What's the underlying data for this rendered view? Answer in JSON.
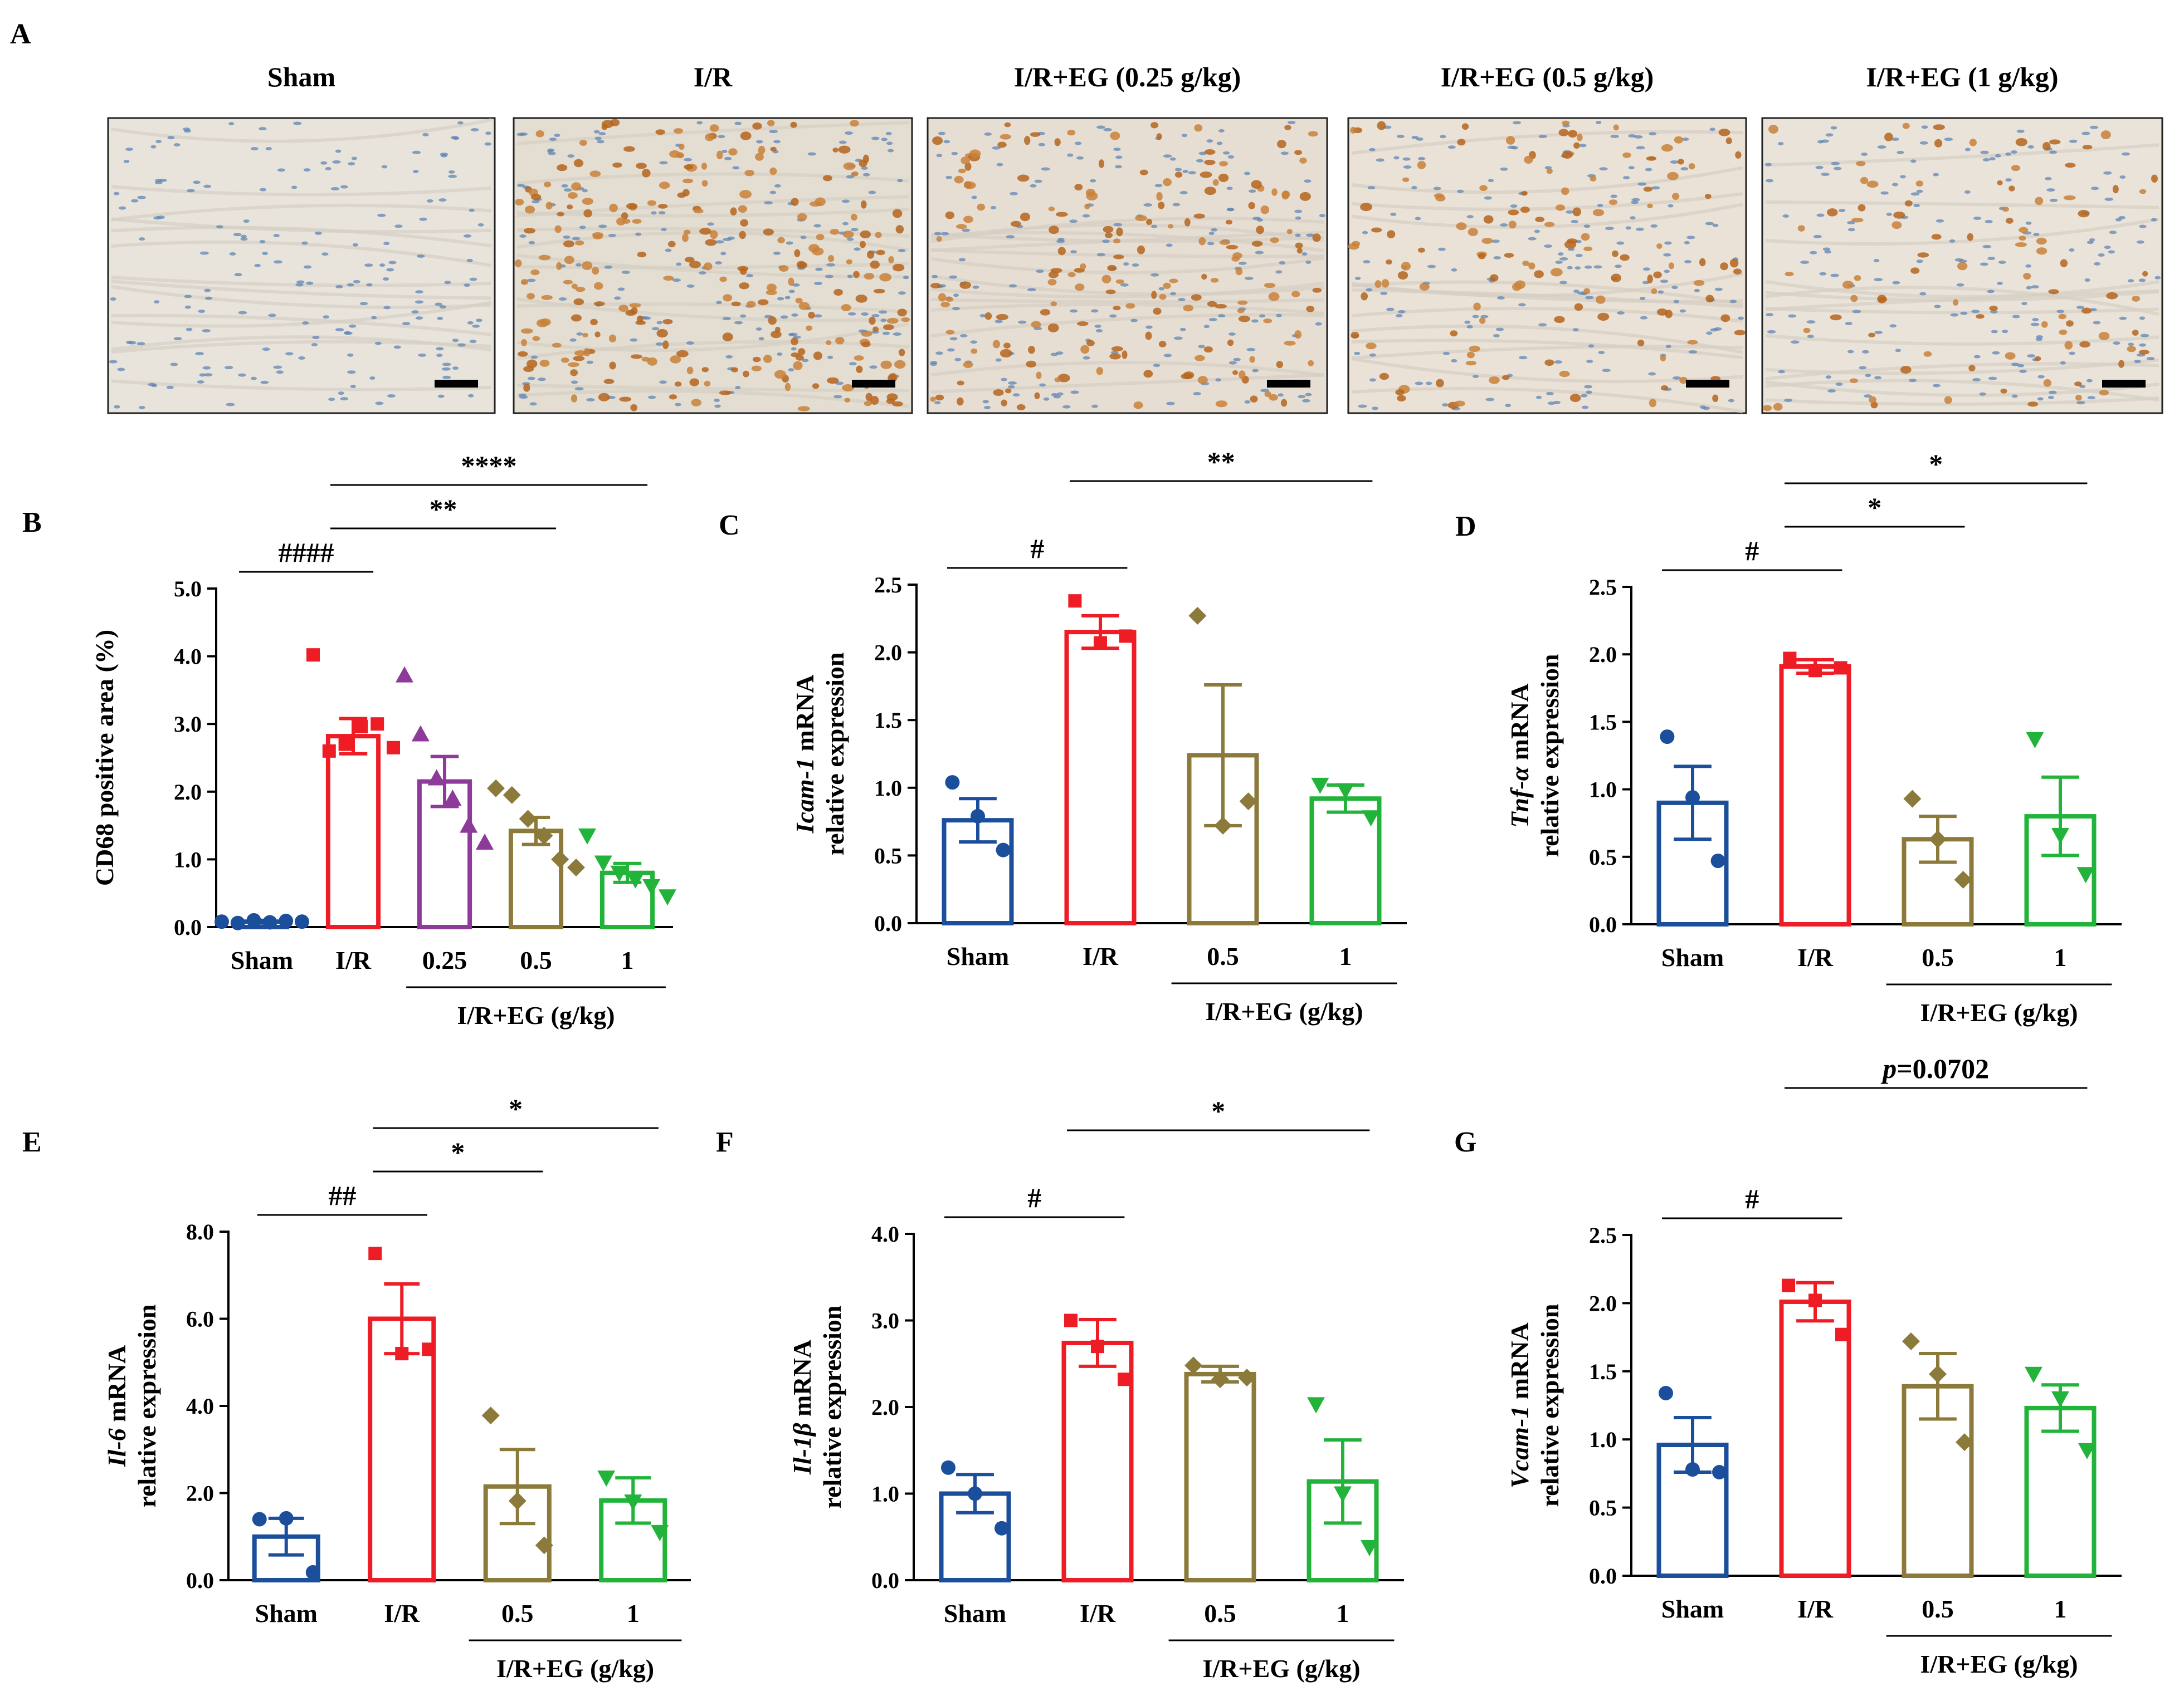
{
  "panel_a": {
    "letter": "A",
    "images": [
      {
        "label": "Sham",
        "tone": "#e8e4dc",
        "stain": "blue",
        "density": 0.0
      },
      {
        "label": "I/R",
        "tone": "#e4ddd2",
        "stain": "brown",
        "density": 1.0
      },
      {
        "label": "I/R+EG (0.25 g/kg)",
        "tone": "#e6ded2",
        "stain": "brown",
        "density": 0.7
      },
      {
        "label": "I/R+EG (0.5 g/kg)",
        "tone": "#eae2d6",
        "stain": "brown",
        "density": 0.5
      },
      {
        "label": "I/R+EG (1 g/kg)",
        "tone": "#e9e3da",
        "stain": "brown",
        "density": 0.35
      }
    ]
  },
  "colors": {
    "Sham": "#1b4f9c",
    "I/R": "#ee1c25",
    "0.25": "#8e3a9a",
    "0.5": "#8b7a3a",
    "1": "#22b33a"
  },
  "group_label": "I/R+EG (g/kg)",
  "chart_data": [
    {
      "id": "B",
      "letter": "B",
      "type": "bar",
      "ylabel_parts": [
        {
          "text": "CD68 positive area (%)",
          "italic": false
        }
      ],
      "ylabel2": "",
      "ylim": [
        0,
        5
      ],
      "yticks": [
        "0.0",
        "1.0",
        "2.0",
        "3.0",
        "4.0",
        "5.0"
      ],
      "categories": [
        "Sham",
        "I/R",
        "0.25",
        "0.5",
        "1"
      ],
      "values": [
        0.08,
        2.82,
        2.15,
        1.42,
        0.8
      ],
      "sem": [
        0.02,
        0.26,
        0.37,
        0.2,
        0.14
      ],
      "points": [
        [
          0.08,
          0.06,
          0.1,
          0.07,
          0.09,
          0.08
        ],
        [
          4.02,
          2.6,
          2.7,
          2.96,
          3.0,
          2.65
        ],
        [
          3.72,
          2.85,
          2.2,
          1.9,
          1.5,
          1.25
        ],
        [
          2.05,
          1.95,
          1.6,
          1.35,
          1.0,
          0.88
        ],
        [
          1.35,
          0.95,
          0.8,
          0.7,
          0.6,
          0.45
        ]
      ],
      "group_cats": [
        2,
        4
      ],
      "comparisons": [
        {
          "from": 0,
          "to": 1,
          "label": "####",
          "level": 0
        },
        {
          "from": 1,
          "to": 3,
          "label": "**",
          "level": 1
        },
        {
          "from": 1,
          "to": 4,
          "label": "****",
          "level": 2
        }
      ]
    },
    {
      "id": "C",
      "letter": "C",
      "type": "bar",
      "ylabel_parts": [
        {
          "text": "Icam-1",
          "italic": true
        },
        {
          "text": " mRNA",
          "italic": false
        }
      ],
      "ylabel2": "relative expression",
      "ylim": [
        0,
        2.5
      ],
      "yticks": [
        "0.0",
        "0.5",
        "1.0",
        "1.5",
        "2.0",
        "2.5"
      ],
      "categories": [
        "Sham",
        "I/R",
        "0.5",
        "1"
      ],
      "values": [
        0.76,
        2.15,
        1.24,
        0.92
      ],
      "sem": [
        0.16,
        0.12,
        0.52,
        0.1
      ],
      "points": [
        [
          1.04,
          0.79,
          0.54
        ],
        [
          2.38,
          2.07,
          2.12
        ],
        [
          2.27,
          0.72,
          0.9
        ],
        [
          1.02,
          0.98,
          0.78
        ]
      ],
      "group_cats": [
        2,
        3
      ],
      "comparisons": [
        {
          "from": 0,
          "to": 1,
          "label": "#",
          "level": 0
        },
        {
          "from": 1,
          "to": 3,
          "label": "**",
          "level": 2
        }
      ]
    },
    {
      "id": "D",
      "letter": "D",
      "type": "bar",
      "ylabel_parts": [
        {
          "text": "Tnf-α",
          "italic": true
        },
        {
          "text": " mRNA",
          "italic": false
        }
      ],
      "ylabel2": "relative expression",
      "ylim": [
        0,
        2.5
      ],
      "yticks": [
        "0.0",
        "0.5",
        "1.0",
        "1.5",
        "2.0",
        "2.5"
      ],
      "categories": [
        "Sham",
        "I/R",
        "0.5",
        "1"
      ],
      "values": [
        0.9,
        1.91,
        0.63,
        0.8
      ],
      "sem": [
        0.27,
        0.05,
        0.17,
        0.29
      ],
      "points": [
        [
          1.39,
          0.94,
          0.47
        ],
        [
          1.97,
          1.88,
          1.9
        ],
        [
          0.93,
          0.63,
          0.33
        ],
        [
          1.37,
          0.66,
          0.37
        ]
      ],
      "group_cats": [
        2,
        3
      ],
      "comparisons": [
        {
          "from": 0,
          "to": 1,
          "label": "#",
          "level": 0
        },
        {
          "from": 1,
          "to": 2,
          "label": "*",
          "level": 1
        },
        {
          "from": 1,
          "to": 3,
          "label": "*",
          "level": 2
        }
      ]
    },
    {
      "id": "E",
      "letter": "E",
      "type": "bar",
      "ylabel_parts": [
        {
          "text": "Il-6",
          "italic": true
        },
        {
          "text": " mRNA",
          "italic": false
        }
      ],
      "ylabel2": "relative expression",
      "ylim": [
        0,
        8
      ],
      "yticks": [
        "0.0",
        "2.0",
        "4.0",
        "6.0",
        "8.0"
      ],
      "categories": [
        "Sham",
        "I/R",
        "0.5",
        "1"
      ],
      "values": [
        1.0,
        6.0,
        2.15,
        1.83
      ],
      "sem": [
        0.42,
        0.8,
        0.85,
        0.52
      ],
      "points": [
        [
          1.4,
          1.42,
          0.18
        ],
        [
          7.5,
          5.2,
          5.3
        ],
        [
          3.78,
          1.82,
          0.8
        ],
        [
          2.35,
          1.8,
          1.1
        ]
      ],
      "group_cats": [
        2,
        3
      ],
      "comparisons": [
        {
          "from": 0,
          "to": 1,
          "label": "##",
          "level": 0
        },
        {
          "from": 1,
          "to": 2,
          "label": "*",
          "level": 1
        },
        {
          "from": 1,
          "to": 3,
          "label": "*",
          "level": 2
        }
      ]
    },
    {
      "id": "F",
      "letter": "F",
      "type": "bar",
      "ylabel_parts": [
        {
          "text": "Il-1β",
          "italic": true
        },
        {
          "text": " mRNA",
          "italic": false
        }
      ],
      "ylabel2": "relative expression",
      "ylim": [
        0,
        4
      ],
      "yticks": [
        "0.0",
        "1.0",
        "2.0",
        "3.0",
        "4.0"
      ],
      "categories": [
        "Sham",
        "I/R",
        "0.5",
        "1"
      ],
      "values": [
        1.0,
        2.74,
        2.38,
        1.14
      ],
      "sem": [
        0.22,
        0.27,
        0.09,
        0.48
      ],
      "points": [
        [
          1.3,
          1.0,
          0.6
        ],
        [
          3.0,
          2.7,
          2.32
        ],
        [
          2.48,
          2.32,
          2.34
        ],
        [
          2.03,
          1.0,
          0.38
        ]
      ],
      "group_cats": [
        2,
        3
      ],
      "comparisons": [
        {
          "from": 0,
          "to": 1,
          "label": "#",
          "level": 0
        },
        {
          "from": 1,
          "to": 3,
          "label": "*",
          "level": 2
        }
      ]
    },
    {
      "id": "G",
      "letter": "G",
      "type": "bar",
      "ylabel_parts": [
        {
          "text": "Vcam-1",
          "italic": true
        },
        {
          "text": " mRNA",
          "italic": false
        }
      ],
      "ylabel2": "relative expression",
      "ylim": [
        0,
        2.5
      ],
      "yticks": [
        "0.0",
        "0.5",
        "1.0",
        "1.5",
        "2.0",
        "2.5"
      ],
      "categories": [
        "Sham",
        "I/R",
        "0.5",
        "1"
      ],
      "values": [
        0.96,
        2.01,
        1.39,
        1.23
      ],
      "sem": [
        0.2,
        0.14,
        0.24,
        0.17
      ],
      "points": [
        [
          1.34,
          0.78,
          0.76
        ],
        [
          2.13,
          2.02,
          1.77
        ],
        [
          1.72,
          1.48,
          0.98
        ],
        [
          1.48,
          1.3,
          0.92
        ]
      ],
      "group_cats": [
        2,
        3
      ],
      "comparisons": [
        {
          "from": 0,
          "to": 1,
          "label": "#",
          "level": 0
        },
        {
          "from": 1,
          "to": 3,
          "label_pre": "p",
          "label": "=0.0702",
          "level": 3
        }
      ]
    }
  ]
}
